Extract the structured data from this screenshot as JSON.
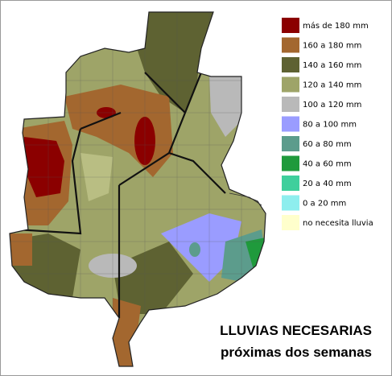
{
  "title": {
    "line1": "LLUVIAS NECESARIAS",
    "line2": "próximas dos semanas"
  },
  "legend": {
    "items": [
      {
        "label": "más de 180 mm",
        "color": "#8b0000"
      },
      {
        "label": "160 a 180 mm",
        "color": "#a3672f"
      },
      {
        "label": "140 a 160 mm",
        "color": "#5e6232"
      },
      {
        "label": "120 a 140 mm",
        "color": "#9ea468"
      },
      {
        "label": "100 a 120 mm",
        "color": "#b9b9b9"
      },
      {
        "label": "80 a 100 mm",
        "color": "#9a9cff"
      },
      {
        "label": "60 a 80 mm",
        "color": "#5c9c8c"
      },
      {
        "label": "40 a 60 mm",
        "color": "#1f9a3c"
      },
      {
        "label": "20 a 40 mm",
        "color": "#3fcf9c"
      },
      {
        "label": "0 a 20 mm",
        "color": "#8eeeee"
      },
      {
        "label": "no necesita lluvia",
        "color": "#ffffcc"
      }
    ]
  }
}
